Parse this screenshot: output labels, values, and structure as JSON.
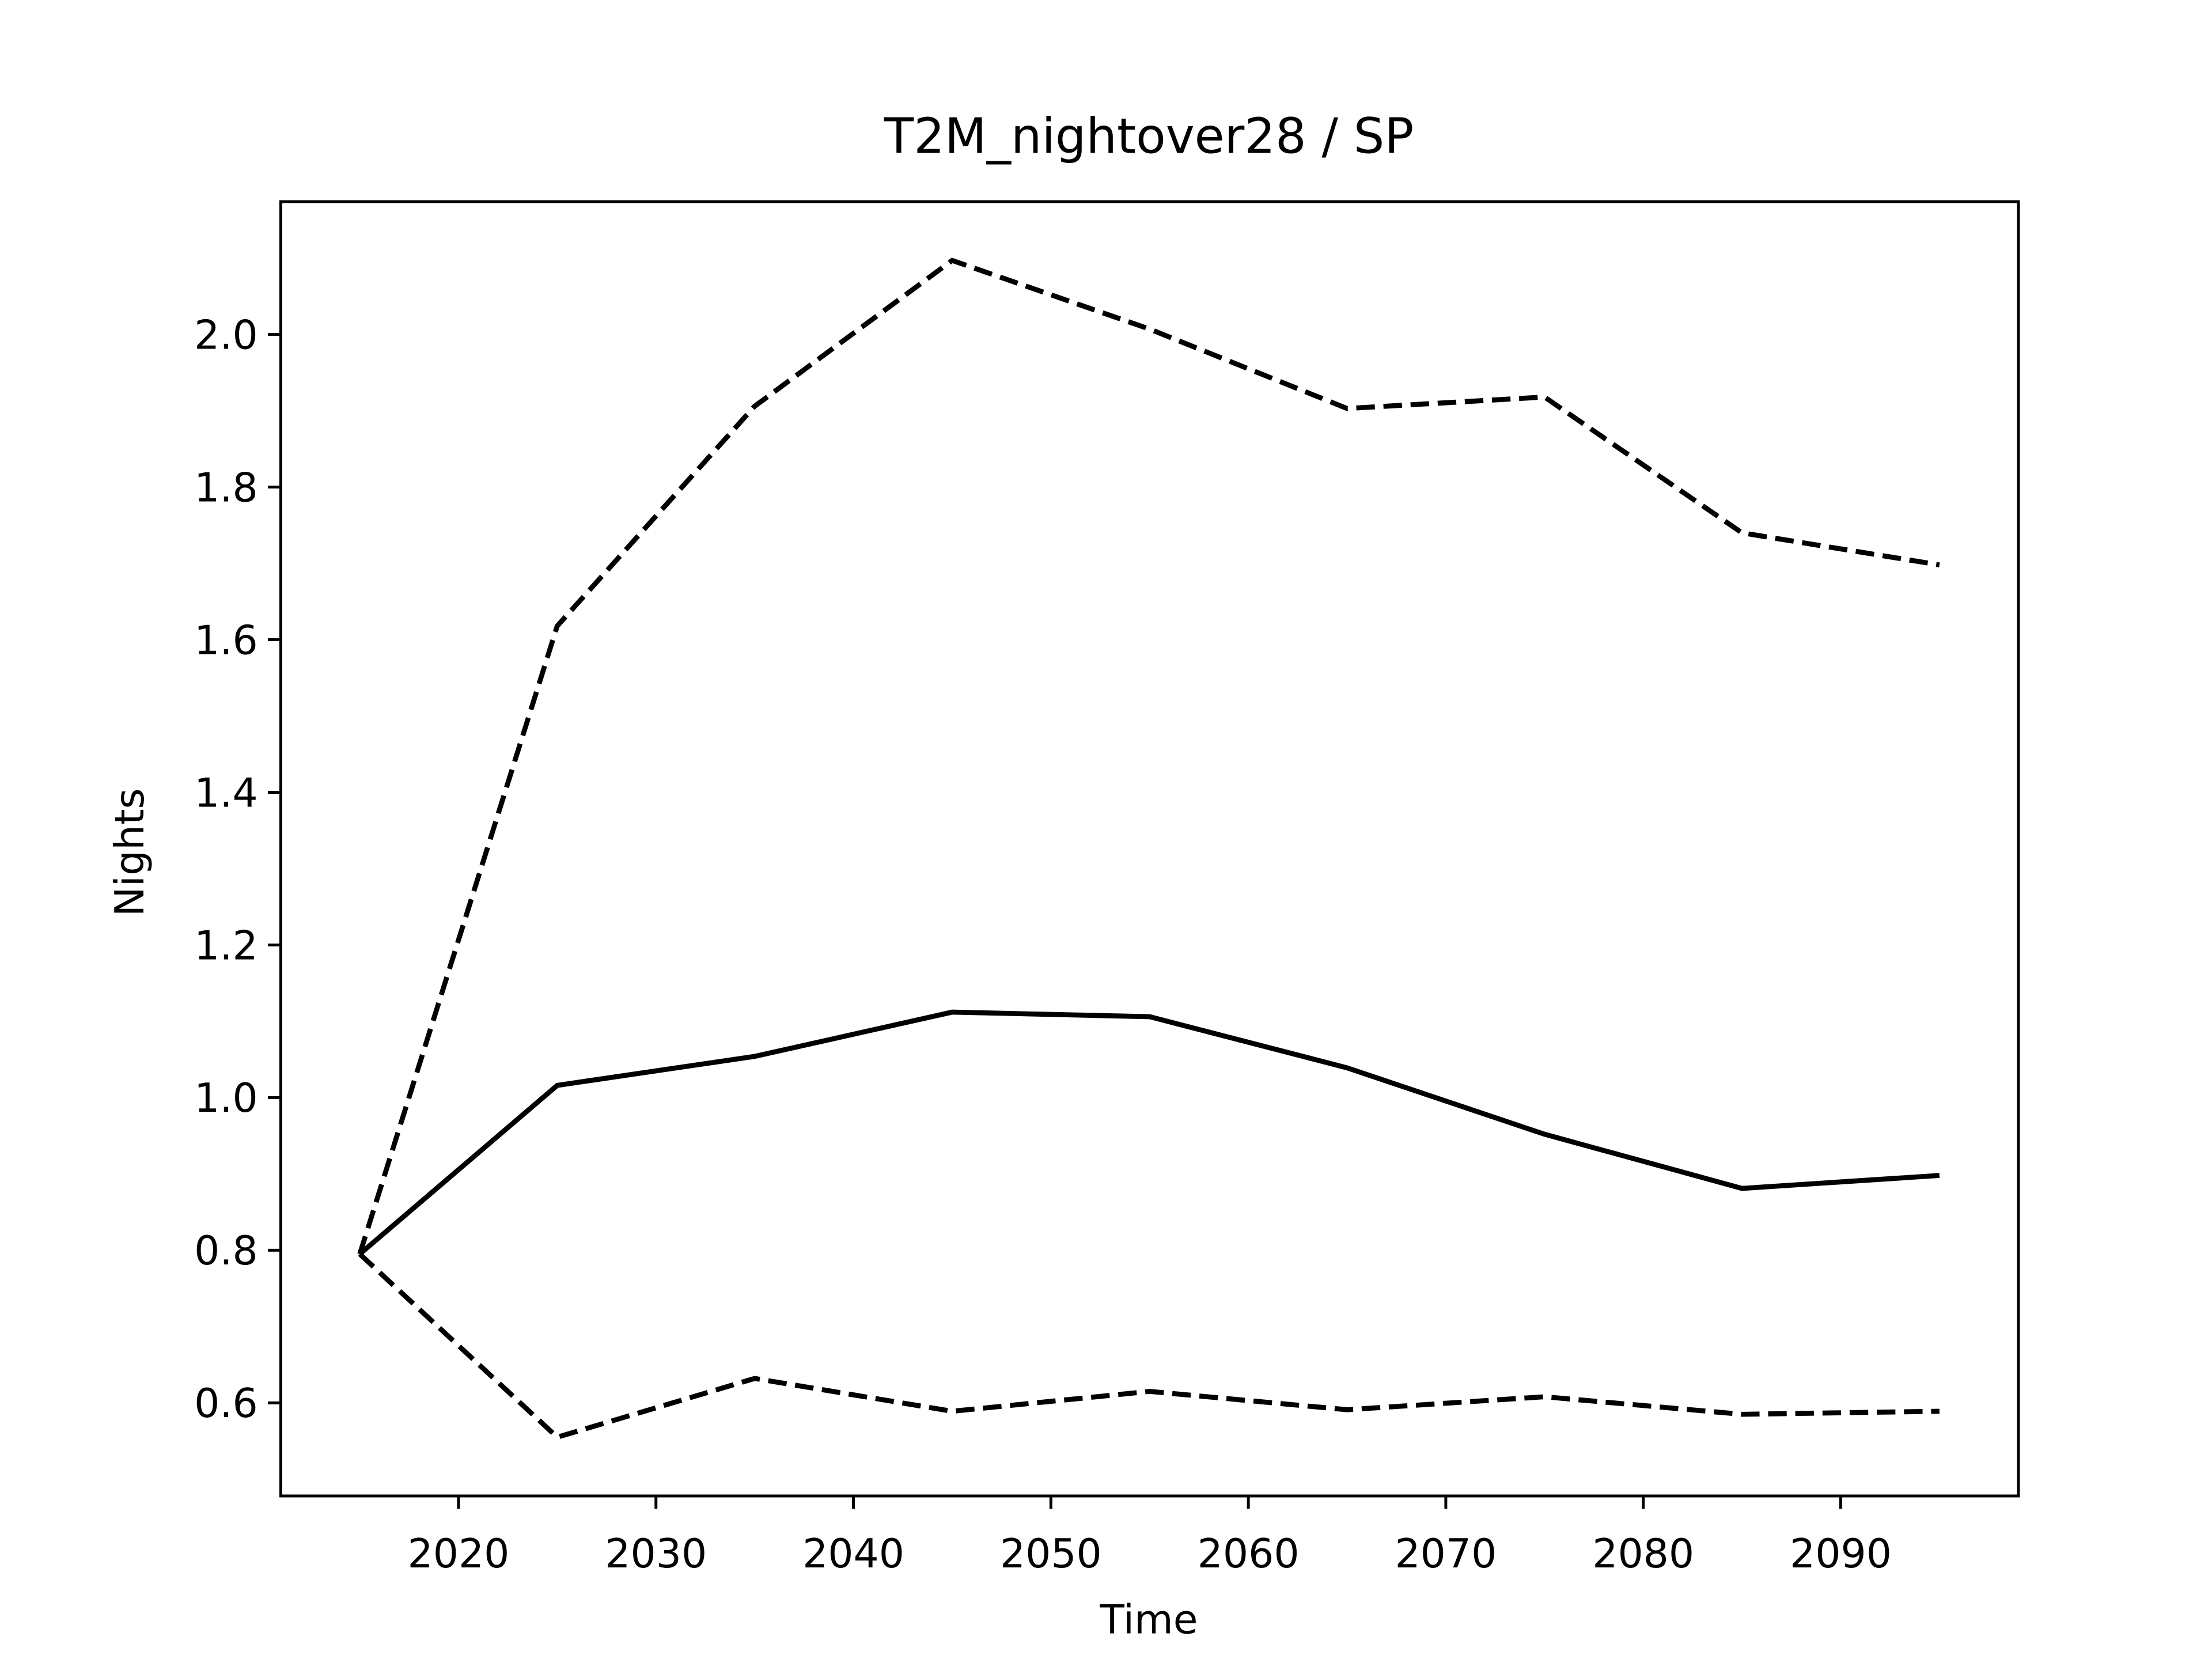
{
  "chart_data": {
    "type": "line",
    "title": "T2M_nightover28 / SP",
    "xlabel": "Time",
    "ylabel": "Nights",
    "x": [
      2015,
      2025,
      2035,
      2045,
      2055,
      2065,
      2075,
      2085,
      2095
    ],
    "series": [
      {
        "color": "#000000",
        "dashed": false,
        "values": [
          0.795,
          1.016,
          1.054,
          1.112,
          1.106,
          1.039,
          0.952,
          0.881,
          0.898
        ]
      },
      {
        "color": "#000000",
        "dashed": true,
        "values": [
          0.795,
          1.618,
          1.906,
          2.097,
          2.007,
          1.903,
          1.918,
          1.74,
          1.698
        ]
      },
      {
        "color": "#000000",
        "dashed": true,
        "values": [
          0.795,
          0.555,
          0.632,
          0.589,
          0.615,
          0.591,
          0.608,
          0.585,
          0.589
        ]
      }
    ],
    "xlim": [
      2011,
      2099
    ],
    "xticks": [
      2020,
      2030,
      2040,
      2050,
      2060,
      2070,
      2080,
      2090
    ],
    "ylim": [
      0.478,
      2.174
    ],
    "yticks": [
      0.6,
      0.8,
      {
        "value": 1.0,
        "label": "1.0"
      },
      1.2,
      1.4,
      1.6,
      1.8,
      {
        "value": 2.0,
        "label": "2.0"
      }
    ]
  }
}
